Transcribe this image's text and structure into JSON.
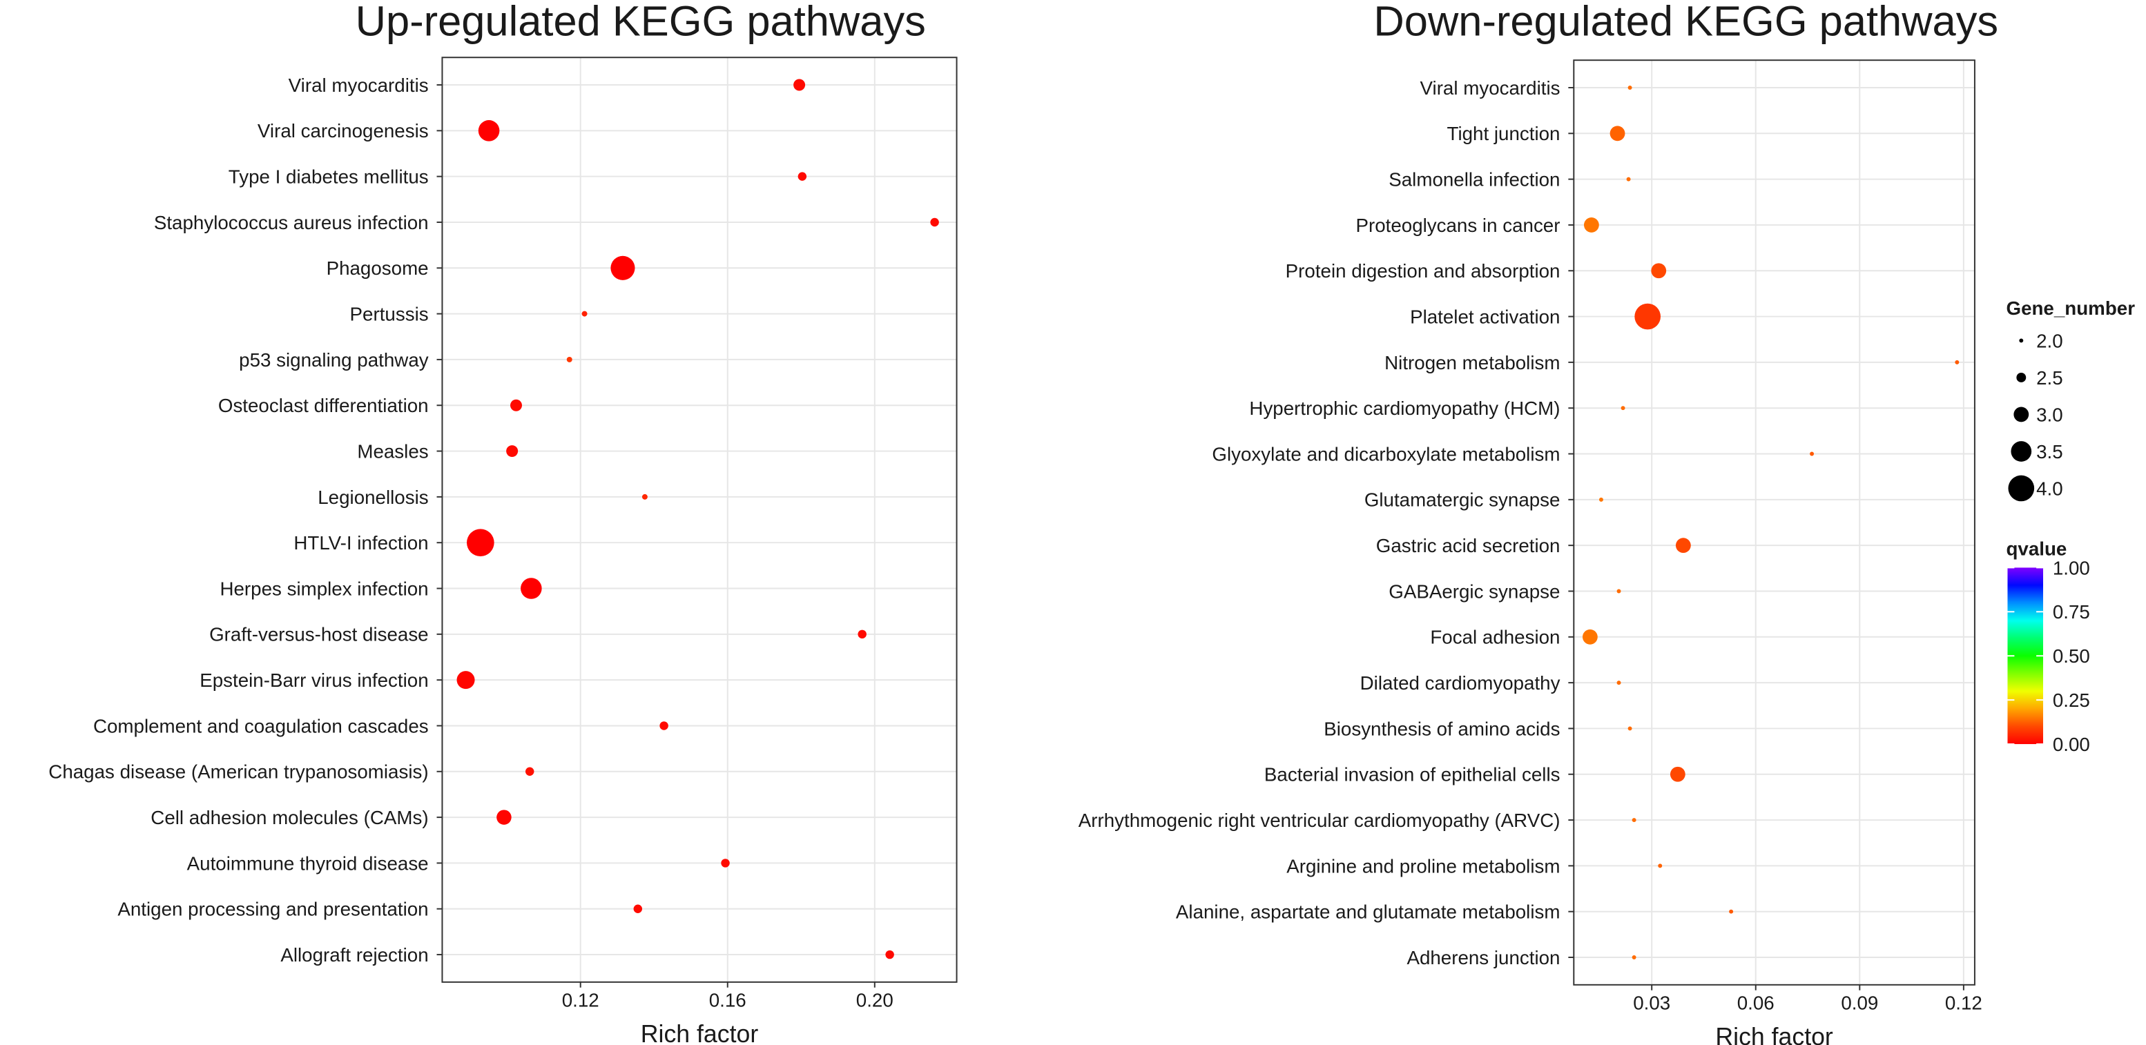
{
  "chart_data": [
    {
      "type": "bubble",
      "title": "Up-regulated KEGG pathways",
      "x_label": "Rich factor",
      "categories": [
        "Viral myocarditis",
        "Viral carcinogenesis",
        "Type I diabetes mellitus",
        "Staphylococcus aureus infection",
        "Phagosome",
        "Pertussis",
        "p53 signaling pathway",
        "Osteoclast differentiation",
        "Measles",
        "Legionellosis",
        "HTLV-I infection",
        "Herpes simplex infection",
        "Graft-versus-host disease",
        "Epstein-Barr virus infection",
        "Complement and coagulation cascades",
        "Chagas disease (American trypanosomiasis)",
        "Cell adhesion molecules (CAMs)",
        "Autoimmune thyroid disease",
        "Antigen processing and presentation",
        "Allograft rejection"
      ],
      "x": [
        0.1795,
        0.0951,
        0.1803,
        0.2163,
        0.1315,
        0.1211,
        0.117,
        0.1025,
        0.1014,
        0.1375,
        0.0928,
        0.1066,
        0.1966,
        0.0888,
        0.1427,
        0.1062,
        0.0992,
        0.1594,
        0.1356,
        0.2041
      ],
      "size": [
        3,
        6,
        2,
        2,
        7,
        1,
        1,
        3,
        3,
        1,
        8,
        6,
        2,
        5,
        2,
        2,
        4,
        2,
        2,
        2
      ],
      "qvalue": [
        0.02,
        0.0,
        0.02,
        0.02,
        0.0,
        0.05,
        0.08,
        0.02,
        0.02,
        0.06,
        0.0,
        0.0,
        0.02,
        0.01,
        0.02,
        0.03,
        0.01,
        0.02,
        0.02,
        0.02
      ],
      "xlim": [
        0.0824,
        0.2223
      ],
      "xticks": [
        0.12,
        0.16,
        {
          "value": 0.2,
          "label": "0.20"
        }
      ],
      "grid": true
    },
    {
      "type": "bubble",
      "title": "Down-regulated KEGG pathways",
      "x_label": "Rich factor",
      "categories": [
        "Viral myocarditis",
        "Tight junction",
        "Salmonella infection",
        "Proteoglycans in cancer",
        "Protein digestion and absorption",
        "Platelet activation",
        "Nitrogen metabolism",
        "Hypertrophic cardiomyopathy (HCM)",
        "Glyoxylate and dicarboxylate metabolism",
        "Glutamatergic synapse",
        "Gastric acid secretion",
        "GABAergic synapse",
        "Focal adhesion",
        "Dilated cardiomyopathy",
        "Biosynthesis of amino acids",
        "Bacterial invasion of epithelial cells",
        "Arrhythmogenic right ventricular cardiomyopathy (ARVC)",
        "Arginine and proline metabolism",
        "Alanine, aspartate and glutamate metabolism",
        "Adherens junction"
      ],
      "x": [
        0.0237,
        0.0201,
        0.0233,
        0.0126,
        0.032,
        0.0288,
        0.1181,
        0.0217,
        0.0762,
        0.0154,
        0.0391,
        0.0205,
        0.0122,
        0.0205,
        0.0237,
        0.0375,
        0.0249,
        0.0324,
        0.0529,
        0.0249
      ],
      "size": [
        2,
        3,
        2,
        3,
        3,
        4,
        2,
        2,
        2,
        2,
        3,
        2,
        3,
        2,
        2,
        3,
        2,
        2,
        2,
        2
      ],
      "qvalue": [
        0.14,
        0.13,
        0.14,
        0.15,
        0.1,
        0.08,
        0.12,
        0.14,
        0.12,
        0.15,
        0.1,
        0.14,
        0.15,
        0.14,
        0.14,
        0.1,
        0.14,
        0.13,
        0.12,
        0.14
      ],
      "xlim": [
        0.0075,
        0.1232
      ],
      "xticks": [
        0.03,
        0.06,
        0.09,
        0.12
      ],
      "grid": true,
      "size_legend": {
        "title": "Gene_number",
        "ticks": [
          {
            "value": 2,
            "label": "2.0"
          },
          2.5,
          {
            "value": 3,
            "label": "3.0"
          },
          3.5,
          {
            "value": 4,
            "label": "4.0"
          }
        ]
      },
      "color_legend": {
        "title": "qvalue",
        "lim": [
          0,
          1
        ],
        "ticks": [
          {
            "value": 0,
            "label": "0.00"
          },
          0.25,
          {
            "value": 0.5,
            "label": "0.50"
          },
          0.75,
          {
            "value": 1,
            "label": "1.00"
          }
        ]
      }
    }
  ]
}
